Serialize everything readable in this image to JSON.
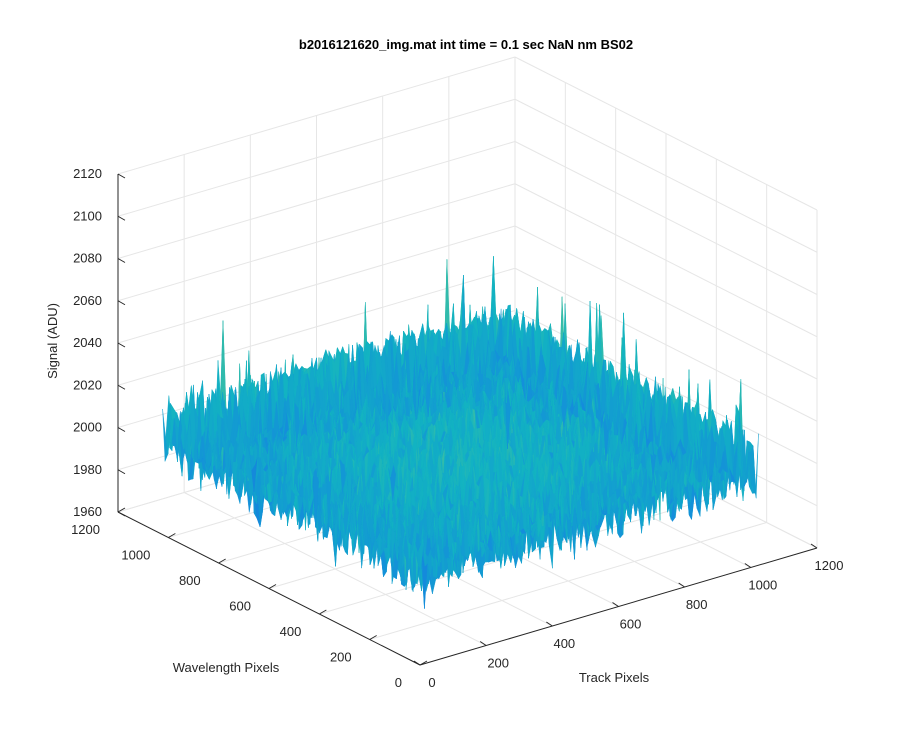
{
  "chart_data": {
    "type": "surface",
    "title": "b2016121620_img.mat int time = 0.1 sec  NaN nm BS02",
    "xlabel": "Track Pixels",
    "ylabel": "Wavelength Pixels",
    "zlabel": "Signal (ADU)",
    "xlim": [
      0,
      1200
    ],
    "ylim": [
      0,
      1200
    ],
    "zlim": [
      1960,
      2120
    ],
    "x_ticks": [
      "0",
      "200",
      "400",
      "600",
      "800",
      "1000",
      "1200"
    ],
    "y_ticks": [
      "0",
      "200",
      "400",
      "600",
      "800",
      "1000",
      "1200"
    ],
    "z_ticks": [
      "1960",
      "1980",
      "2000",
      "2020",
      "2040",
      "2060",
      "2080",
      "2100",
      "2120"
    ],
    "grid": true,
    "colormap": "parula",
    "colors": {
      "surface_low": "#1f6fd6",
      "surface_mid": "#12b3c2",
      "surface_high": "#d9c93a",
      "grid": "#e6e6e6",
      "axis": "#262626"
    },
    "data_summary": {
      "x_range": [
        1,
        1024
      ],
      "y_range": [
        1,
        1024
      ],
      "mean_signal": 2008,
      "min_signal": 1965,
      "max_signal": 2112
    }
  }
}
